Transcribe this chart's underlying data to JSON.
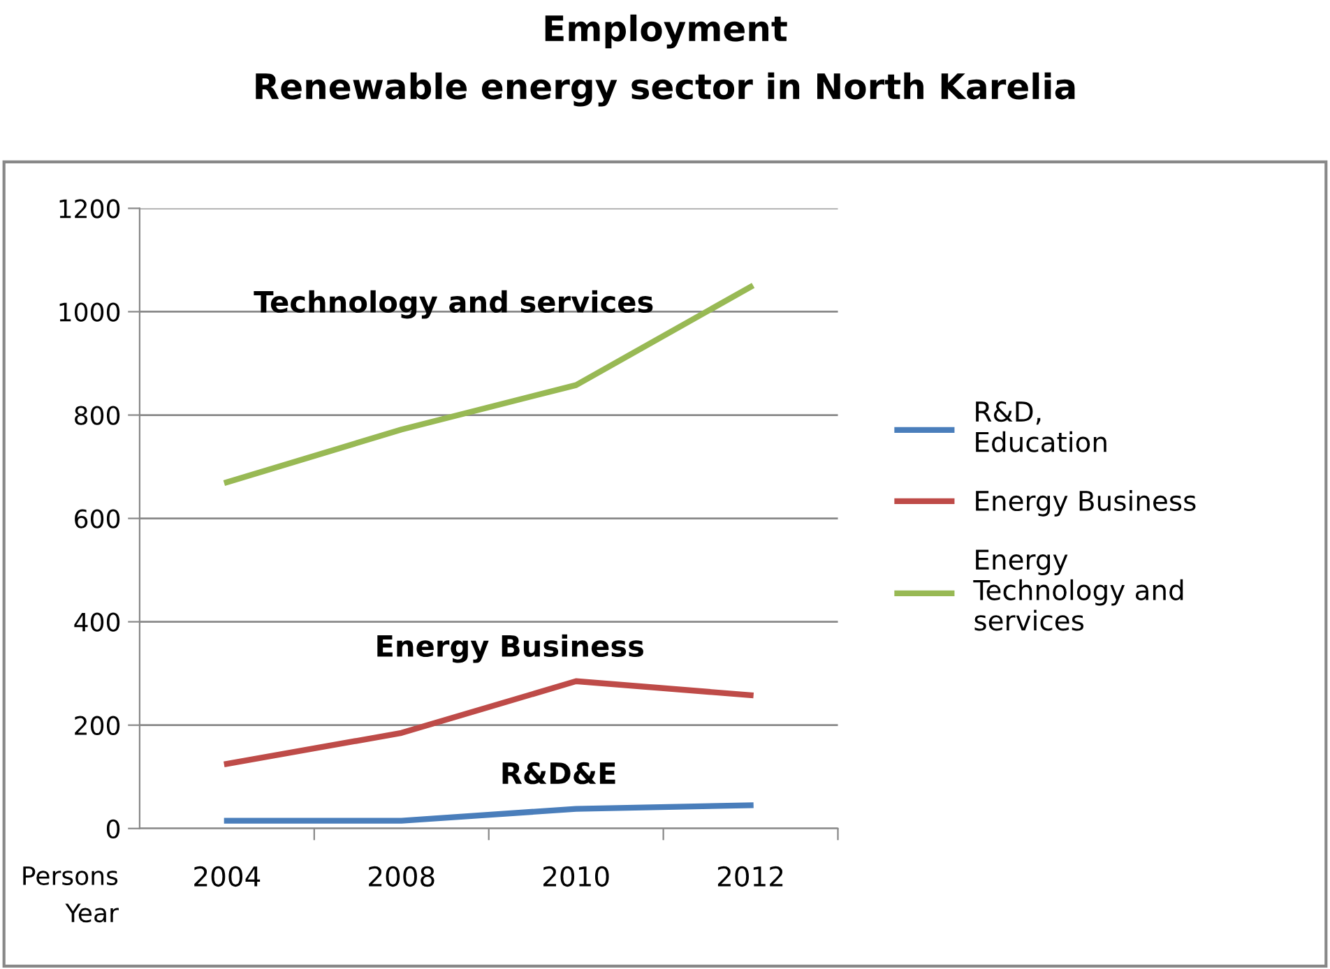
{
  "chart_data": {
    "type": "line",
    "title": "Employment\nRenewable energy sector in North Karelia",
    "ylabel": "Persons",
    "xlabel": "Year",
    "categories": [
      "2004",
      "2008",
      "2010",
      "2012"
    ],
    "series": [
      {
        "name": "R&D,\nEducation",
        "color": "#4a7ebb",
        "values": [
          15,
          15,
          38,
          45
        ]
      },
      {
        "name": "Energy Business",
        "color": "#be4b48",
        "values": [
          125,
          185,
          285,
          258
        ]
      },
      {
        "name": "Energy\nTechnology and\nservices",
        "color": "#98b954",
        "values": [
          670,
          772,
          858,
          1048
        ]
      }
    ],
    "annotations": [
      "Technology and services",
      "Energy Business",
      "R&D&E"
    ],
    "ylim": [
      0,
      1200
    ],
    "yticks": [
      0,
      200,
      400,
      600,
      800,
      1000,
      1200
    ],
    "grid": "y",
    "legend": "right",
    "marker": "none",
    "line_style": "solid"
  }
}
